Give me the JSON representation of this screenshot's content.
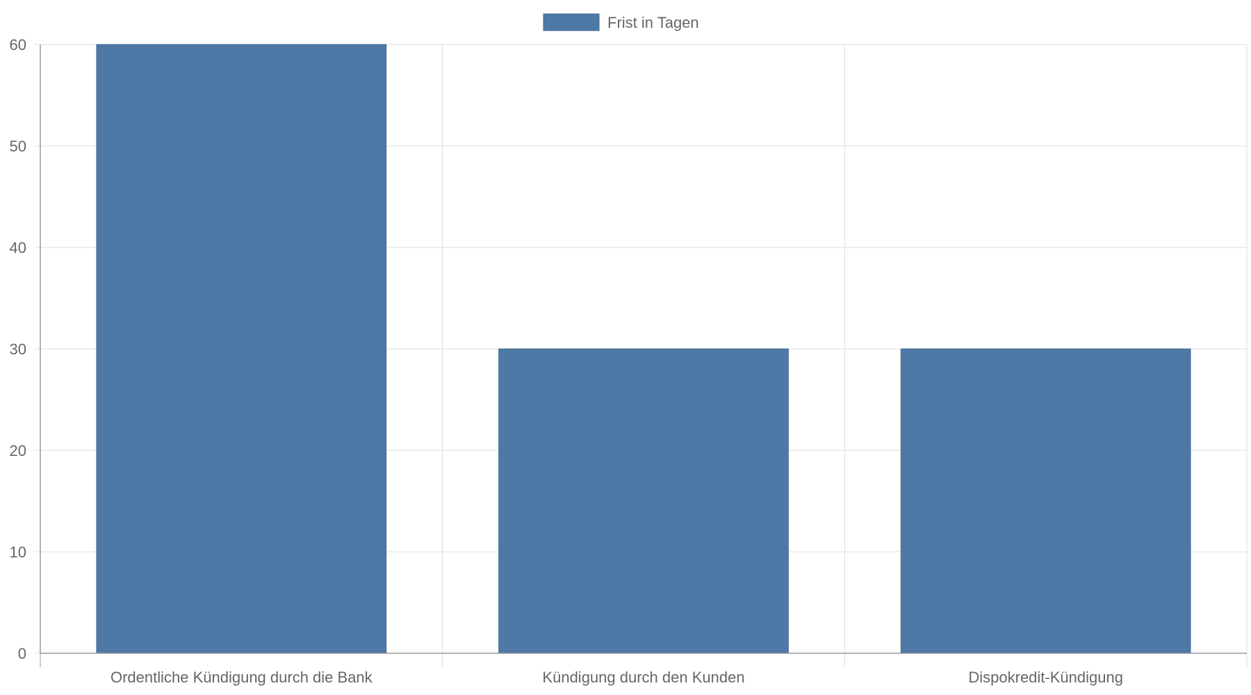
{
  "chart_data": {
    "type": "bar",
    "categories": [
      "Ordentliche Kündigung durch die Bank",
      "Kündigung durch den Kunden",
      "Dispokredit-Kündigung"
    ],
    "series": [
      {
        "name": "Frist in Tagen",
        "values": [
          60,
          30,
          30
        ],
        "color": "#4e79a7"
      }
    ],
    "ylim": [
      0,
      60
    ],
    "yticks": [
      0,
      10,
      20,
      30,
      40,
      50,
      60
    ],
    "grid": true,
    "legend_position": "top-center",
    "colors": {
      "bar_fill": "#4e79a7",
      "bar_stroke": "#3f6690",
      "grid": "#dddddd",
      "axis": "#999999",
      "text": "#666666"
    }
  }
}
